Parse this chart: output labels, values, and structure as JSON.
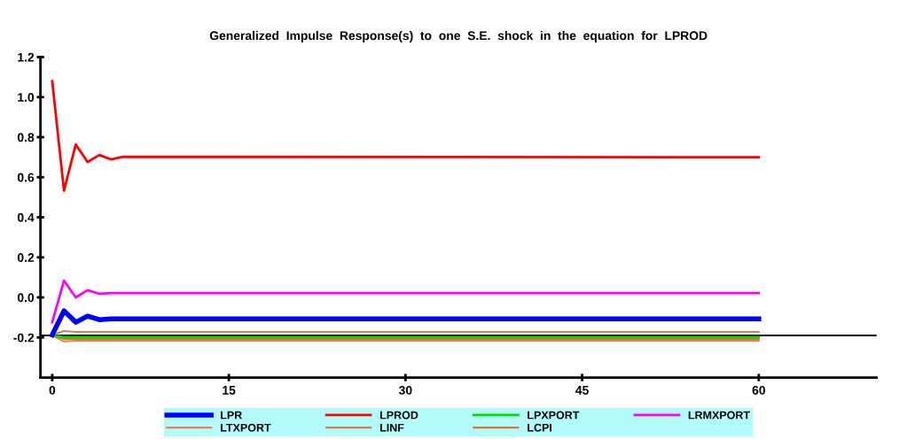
{
  "chart_data": {
    "type": "line",
    "title": "Generalized  Impulse  Response(s)  to  one  S.E.  shock  in  the  equation  for  LPROD",
    "series": [
      {
        "name": "LPR",
        "color": "#0000ff",
        "x": [
          0,
          1,
          2,
          3,
          4,
          5,
          6,
          60
        ],
        "values": [
          -0.187,
          -0.067,
          -0.124,
          -0.093,
          -0.111,
          -0.107,
          -0.107,
          -0.107
        ]
      },
      {
        "name": "LPROD",
        "color": "#ff0000",
        "x": [
          0,
          1,
          2,
          3,
          4,
          5,
          6,
          60
        ],
        "values": [
          1.08,
          0.533,
          0.764,
          0.676,
          0.711,
          0.689,
          0.702,
          0.7
        ]
      },
      {
        "name": "LPXPORT",
        "color": "#00dd00",
        "x": [
          0,
          1,
          2,
          60
        ],
        "values": [
          -0.19,
          -0.198,
          -0.198,
          -0.198
        ]
      },
      {
        "name": "LRMXPORT",
        "color": "#ff00ff",
        "x": [
          0,
          1,
          2,
          3,
          4,
          5,
          6,
          60
        ],
        "values": [
          -0.124,
          0.084,
          0.0,
          0.036,
          0.018,
          0.022,
          0.022,
          0.022
        ]
      },
      {
        "name": "LTXPORT",
        "color": "#f08050",
        "x": [
          0,
          1,
          2,
          60
        ],
        "values": [
          -0.19,
          -0.22,
          -0.216,
          -0.216
        ]
      },
      {
        "name": "LINF",
        "color": "#c8864a",
        "x": [
          0,
          1,
          2,
          60
        ],
        "values": [
          -0.187,
          -0.168,
          -0.172,
          -0.172
        ]
      },
      {
        "name": "LCPI",
        "color": "#e07030",
        "x": [
          0,
          1,
          60
        ],
        "values": [
          -0.19,
          -0.207,
          -0.207
        ]
      }
    ],
    "xlim": [
      -1,
      70
    ],
    "xticks": [
      0,
      15,
      30,
      45,
      60
    ],
    "ylim": [
      -0.4,
      1.2
    ],
    "yticks": [
      -0.2,
      {
        "value": 0,
        "label": "0.0"
      },
      0.2,
      0.4,
      0.6,
      0.8,
      {
        "value": 1,
        "label": "1.0"
      },
      1.2
    ],
    "ref_lines": [
      {
        "axis": "y",
        "value": -0.19,
        "color": "#000000"
      }
    ],
    "grid": false,
    "legend": "bottom",
    "marker": "none",
    "line_style": "solid"
  }
}
